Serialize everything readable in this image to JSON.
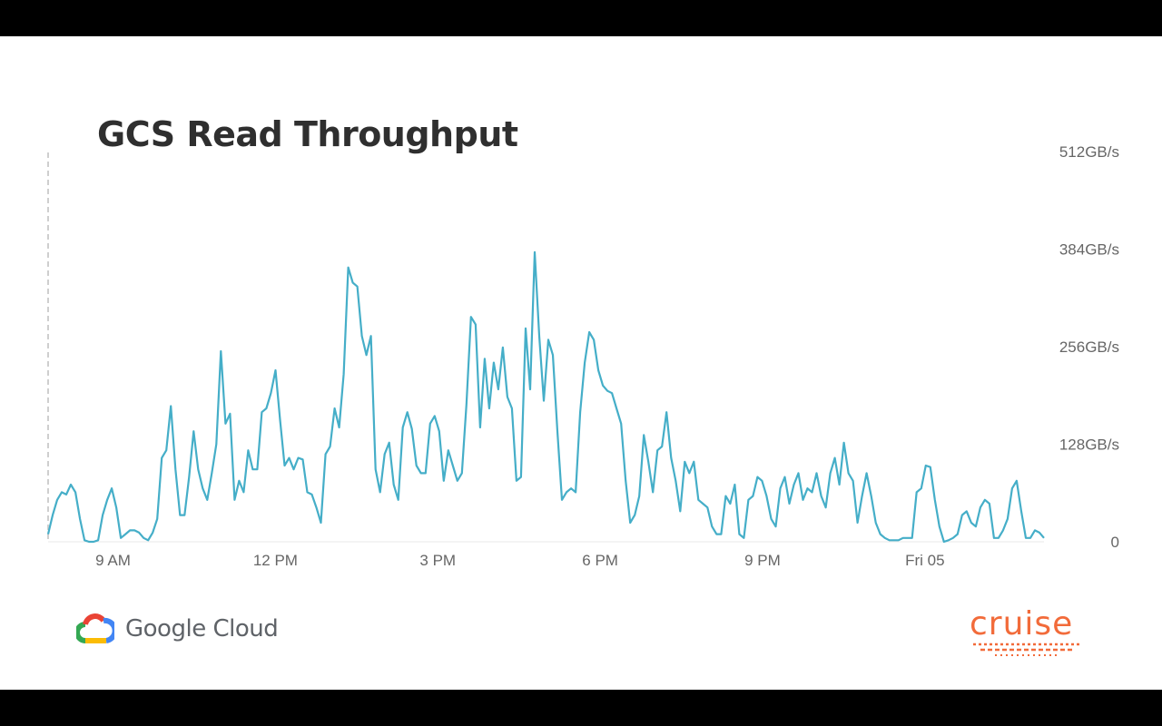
{
  "slide": {
    "title": "GCS Read Throughput"
  },
  "branding": {
    "google_cloud_label": "Google Cloud",
    "cruise_label": "cruise",
    "cruise_color": "#f26b3a",
    "google_colors": [
      "#ea4335",
      "#fbbc05",
      "#34a853",
      "#4285f4"
    ]
  },
  "chart_data": {
    "type": "line",
    "title": "GCS Read Throughput",
    "xlabel": "",
    "ylabel": "",
    "x_unit": "hours",
    "x_range": [
      7.8,
      26.2
    ],
    "y_unit": "GB/s",
    "ylim": [
      0,
      512
    ],
    "yticks": [
      {
        "value": 512,
        "label": "512GB/s"
      },
      {
        "value": 384,
        "label": "384GB/s"
      },
      {
        "value": 256,
        "label": "256GB/s"
      },
      {
        "value": 128,
        "label": "128GB/s"
      },
      {
        "value": 0,
        "label": "0"
      }
    ],
    "xticks": [
      {
        "value": 9,
        "label": "9 AM"
      },
      {
        "value": 12,
        "label": "12 PM"
      },
      {
        "value": 15,
        "label": "3 PM"
      },
      {
        "value": 18,
        "label": "6 PM"
      },
      {
        "value": 21,
        "label": "9 PM"
      },
      {
        "value": 24,
        "label": "Fri 05"
      }
    ],
    "grid": false,
    "line_color": "#45aec8",
    "series": [
      {
        "name": "GCS Read Throughput",
        "x_start": 7.8,
        "x_step": 0.0667,
        "values": [
          10,
          35,
          55,
          65,
          62,
          75,
          65,
          30,
          2,
          0,
          0,
          2,
          35,
          55,
          70,
          45,
          5,
          10,
          15,
          15,
          12,
          5,
          2,
          12,
          30,
          110,
          120,
          178,
          95,
          35,
          35,
          85,
          145,
          95,
          70,
          55,
          90,
          128,
          250,
          155,
          168,
          55,
          80,
          65,
          120,
          95,
          95,
          170,
          175,
          195,
          225,
          160,
          100,
          110,
          95,
          110,
          108,
          65,
          62,
          45,
          25,
          115,
          125,
          175,
          150,
          220,
          360,
          340,
          335,
          270,
          245,
          270,
          95,
          65,
          115,
          130,
          75,
          55,
          150,
          170,
          148,
          100,
          90,
          90,
          155,
          165,
          145,
          80,
          120,
          100,
          80,
          90,
          180,
          295,
          285,
          150,
          240,
          175,
          235,
          200,
          255,
          190,
          175,
          80,
          85,
          280,
          200,
          380,
          270,
          185,
          265,
          245,
          145,
          55,
          65,
          70,
          65,
          170,
          235,
          275,
          265,
          225,
          205,
          198,
          195,
          175,
          155,
          80,
          25,
          35,
          60,
          140,
          105,
          65,
          120,
          125,
          170,
          110,
          80,
          40,
          105,
          90,
          105,
          55,
          50,
          45,
          20,
          10,
          10,
          60,
          50,
          75,
          10,
          5,
          55,
          60,
          85,
          80,
          60,
          30,
          20,
          70,
          85,
          50,
          75,
          90,
          55,
          70,
          65,
          90,
          60,
          45,
          90,
          110,
          75,
          130,
          90,
          80,
          25,
          60,
          90,
          60,
          25,
          10,
          5,
          2,
          2,
          2,
          5,
          5,
          5,
          65,
          70,
          100,
          98,
          55,
          20,
          0,
          2,
          5,
          10,
          35,
          40,
          25,
          20,
          45,
          55,
          50,
          5,
          5,
          15,
          30,
          70,
          80,
          40,
          5,
          5,
          15,
          12,
          5
        ]
      }
    ]
  }
}
